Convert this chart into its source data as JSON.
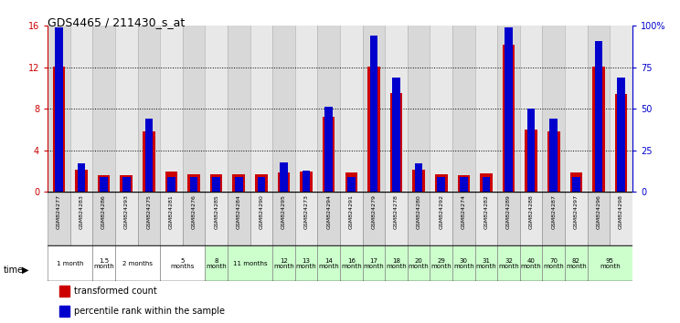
{
  "title": "GDS4465 / 211430_s_at",
  "samples": [
    "GSM824277",
    "GSM824283",
    "GSM824286",
    "GSM824293",
    "GSM824275",
    "GSM824281",
    "GSM824276",
    "GSM824285",
    "GSM824284",
    "GSM824290",
    "GSM824295",
    "GSM824273",
    "GSM824294",
    "GSM824291",
    "GSM824279",
    "GSM824278",
    "GSM824280",
    "GSM824292",
    "GSM824274",
    "GSM824282",
    "GSM824289",
    "GSM824288",
    "GSM824287",
    "GSM824297",
    "GSM824296",
    "GSM824298"
  ],
  "red_values": [
    12.1,
    2.1,
    1.6,
    1.6,
    5.8,
    2.0,
    1.7,
    1.7,
    1.7,
    1.7,
    1.9,
    2.0,
    7.2,
    1.9,
    12.1,
    9.5,
    2.1,
    1.7,
    1.6,
    1.8,
    14.2,
    6.0,
    5.8,
    1.9,
    12.1,
    9.4
  ],
  "blue_percentiles": [
    99,
    17,
    9,
    9,
    44,
    9,
    9,
    9,
    9,
    9,
    18,
    13,
    51,
    9,
    94,
    69,
    17,
    9,
    9,
    9,
    99,
    50,
    44,
    9,
    91,
    69
  ],
  "yticks_left": [
    0,
    4,
    8,
    12,
    16
  ],
  "yticks_right": [
    0,
    25,
    50,
    75,
    100
  ],
  "ylim_left": [
    0,
    16
  ],
  "ylim_right": [
    0,
    100
  ],
  "red_color": "#cc0000",
  "blue_color": "#0000cc",
  "bar_width": 0.55,
  "blue_bar_width": 0.35,
  "time_groups": [
    {
      "label": "1 month",
      "start": 0,
      "end": 1,
      "color": "#ffffff"
    },
    {
      "label": "1.5\nmonth",
      "start": 2,
      "end": 2,
      "color": "#ffffff"
    },
    {
      "label": "2 months",
      "start": 3,
      "end": 4,
      "color": "#ffffff"
    },
    {
      "label": "5\nmonths",
      "start": 5,
      "end": 6,
      "color": "#ffffff"
    },
    {
      "label": "8\nmonth",
      "start": 7,
      "end": 7,
      "color": "#ccffcc"
    },
    {
      "label": "11 months",
      "start": 8,
      "end": 9,
      "color": "#ccffcc"
    },
    {
      "label": "12\nmonth",
      "start": 10,
      "end": 10,
      "color": "#ccffcc"
    },
    {
      "label": "13\nmonth",
      "start": 11,
      "end": 11,
      "color": "#ccffcc"
    },
    {
      "label": "14\nmonth",
      "start": 12,
      "end": 12,
      "color": "#ccffcc"
    },
    {
      "label": "16\nmonth",
      "start": 13,
      "end": 13,
      "color": "#ccffcc"
    },
    {
      "label": "17\nmonth",
      "start": 14,
      "end": 14,
      "color": "#ccffcc"
    },
    {
      "label": "18\nmonth",
      "start": 15,
      "end": 15,
      "color": "#ccffcc"
    },
    {
      "label": "20\nmonth",
      "start": 16,
      "end": 16,
      "color": "#ccffcc"
    },
    {
      "label": "29\nmonth",
      "start": 17,
      "end": 17,
      "color": "#ccffcc"
    },
    {
      "label": "30\nmonth",
      "start": 18,
      "end": 18,
      "color": "#ccffcc"
    },
    {
      "label": "31\nmonth",
      "start": 19,
      "end": 19,
      "color": "#ccffcc"
    },
    {
      "label": "32\nmonth",
      "start": 20,
      "end": 20,
      "color": "#ccffcc"
    },
    {
      "label": "40\nmonth",
      "start": 21,
      "end": 21,
      "color": "#ccffcc"
    },
    {
      "label": "70\nmonth",
      "start": 22,
      "end": 22,
      "color": "#ccffcc"
    },
    {
      "label": "82\nmonth",
      "start": 23,
      "end": 23,
      "color": "#ccffcc"
    },
    {
      "label": "95\nmonth",
      "start": 24,
      "end": 25,
      "color": "#ccffcc"
    }
  ],
  "col_bg_colors": [
    "#d8d8d8",
    "#e8e8e8",
    "#d8d8d8",
    "#e8e8e8",
    "#d8d8d8",
    "#e8e8e8",
    "#d8d8d8",
    "#e8e8e8",
    "#d8d8d8",
    "#e8e8e8",
    "#d8d8d8",
    "#e8e8e8",
    "#d8d8d8",
    "#e8e8e8",
    "#d8d8d8",
    "#e8e8e8",
    "#d8d8d8",
    "#e8e8e8",
    "#d8d8d8",
    "#e8e8e8",
    "#d8d8d8",
    "#e8e8e8",
    "#d8d8d8",
    "#e8e8e8",
    "#d8d8d8",
    "#e8e8e8"
  ]
}
